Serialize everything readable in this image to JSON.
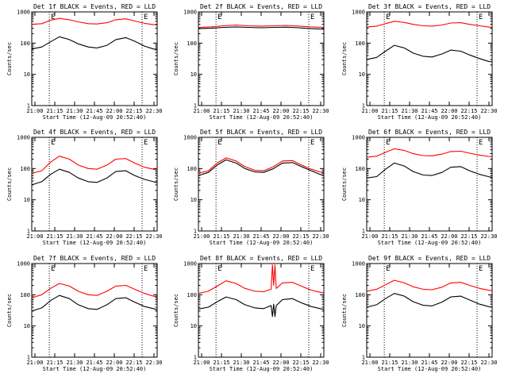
{
  "chart_data": [
    {
      "type": "line",
      "title": "Det 1f BLACK = Events, RED = LLD",
      "xlabel": "Start Time (12-Aug-09 20:52:40)",
      "ylabel": "Counts/sec",
      "yscale": "log",
      "ylim": [
        1,
        1000
      ],
      "xlim": [
        0,
        100
      ],
      "x_ticks": [
        "21:00",
        "21:15",
        "21:30",
        "21:45",
        "22:00",
        "22:15",
        "22:30"
      ],
      "y_ticks": [
        "1",
        "10",
        "100",
        "1000"
      ],
      "event_markers": [
        "E",
        "E"
      ],
      "series": [
        {
          "color": "#000000",
          "x": [
            0,
            8,
            15,
            22,
            30,
            37,
            45,
            52,
            60,
            67,
            75,
            82,
            90,
            97,
            100
          ],
          "values": [
            65,
            75,
            110,
            160,
            130,
            95,
            75,
            70,
            85,
            130,
            150,
            115,
            80,
            65,
            62
          ]
        },
        {
          "color": "#ff0000",
          "x": [
            0,
            8,
            15,
            22,
            30,
            37,
            45,
            52,
            60,
            67,
            75,
            82,
            90,
            97,
            100
          ],
          "values": [
            400,
            420,
            540,
            620,
            560,
            480,
            420,
            410,
            450,
            560,
            600,
            510,
            430,
            390,
            380
          ]
        }
      ]
    },
    {
      "type": "line",
      "title": "Det 2f BLACK = Events, RED = LLD",
      "xlabel": "Start Time (12-Aug-09 20:52:40)",
      "ylabel": "Counts/sec",
      "yscale": "log",
      "ylim": [
        1,
        1000
      ],
      "xlim": [
        0,
        100
      ],
      "x_ticks": [
        "21:00",
        "21:15",
        "21:30",
        "21:45",
        "22:00",
        "22:15",
        "22:30"
      ],
      "y_ticks": [
        "1",
        "10",
        "100",
        "1000"
      ],
      "event_markers": [
        "E",
        "E"
      ],
      "series": [
        {
          "color": "#000000",
          "x": [
            0,
            10,
            20,
            30,
            40,
            50,
            60,
            70,
            80,
            90,
            100
          ],
          "values": [
            290,
            300,
            320,
            330,
            320,
            310,
            320,
            325,
            310,
            290,
            280
          ]
        },
        {
          "color": "#ff0000",
          "x": [
            0,
            10,
            20,
            30,
            40,
            50,
            60,
            70,
            80,
            90,
            100
          ],
          "values": [
            320,
            330,
            360,
            380,
            360,
            350,
            360,
            370,
            350,
            330,
            320
          ]
        }
      ]
    },
    {
      "type": "line",
      "title": "Det 3f BLACK = Events, RED = LLD",
      "xlabel": "Start Time (12-Aug-09 20:52:40)",
      "ylabel": "Counts/sec",
      "yscale": "log",
      "ylim": [
        1,
        1000
      ],
      "xlim": [
        0,
        100
      ],
      "x_ticks": [
        "21:00",
        "21:15",
        "21:30",
        "21:45",
        "22:00",
        "22:15",
        "22:30"
      ],
      "y_ticks": [
        "1",
        "10",
        "100",
        "1000"
      ],
      "event_markers": [
        "E",
        "E"
      ],
      "series": [
        {
          "color": "#000000",
          "x": [
            0,
            8,
            15,
            22,
            30,
            37,
            45,
            52,
            60,
            67,
            75,
            82,
            90,
            97,
            100
          ],
          "values": [
            30,
            35,
            55,
            85,
            70,
            48,
            38,
            36,
            45,
            60,
            55,
            42,
            32,
            26,
            25
          ]
        },
        {
          "color": "#ff0000",
          "x": [
            0,
            8,
            15,
            22,
            30,
            37,
            45,
            52,
            60,
            67,
            75,
            82,
            90,
            97,
            100
          ],
          "values": [
            330,
            350,
            420,
            500,
            460,
            400,
            360,
            350,
            380,
            440,
            450,
            400,
            360,
            330,
            320
          ]
        }
      ]
    },
    {
      "type": "line",
      "title": "Det 4f BLACK = Events, RED = LLD",
      "xlabel": "Start Time (12-Aug-09 20:52:40)",
      "ylabel": "Counts/sec",
      "yscale": "log",
      "ylim": [
        1,
        1000
      ],
      "xlim": [
        0,
        100
      ],
      "x_ticks": [
        "21:00",
        "21:15",
        "21:30",
        "21:45",
        "22:00",
        "22:15",
        "22:30"
      ],
      "y_ticks": [
        "1",
        "10",
        "100",
        "1000"
      ],
      "event_markers": [
        "E",
        "E"
      ],
      "series": [
        {
          "color": "#000000",
          "x": [
            0,
            8,
            15,
            22,
            30,
            37,
            45,
            52,
            60,
            67,
            75,
            82,
            90,
            97,
            100
          ],
          "values": [
            30,
            38,
            65,
            95,
            75,
            50,
            38,
            36,
            50,
            80,
            85,
            60,
            45,
            38,
            35
          ]
        },
        {
          "color": "#ff0000",
          "x": [
            0,
            8,
            15,
            22,
            30,
            37,
            45,
            52,
            60,
            67,
            75,
            82,
            90,
            97,
            100
          ],
          "values": [
            70,
            85,
            160,
            250,
            200,
            130,
            100,
            95,
            130,
            200,
            210,
            150,
            110,
            95,
            90
          ]
        }
      ]
    },
    {
      "type": "line",
      "title": "Det 5f BLACK = Events, RED = LLD",
      "xlabel": "Start Time (12-Aug-09 20:52:40)",
      "ylabel": "Counts/sec",
      "yscale": "log",
      "ylim": [
        1,
        1000
      ],
      "xlim": [
        0,
        100
      ],
      "x_ticks": [
        "21:00",
        "21:15",
        "21:30",
        "21:45",
        "22:00",
        "22:15",
        "22:30"
      ],
      "y_ticks": [
        "1",
        "10",
        "100",
        "1000"
      ],
      "event_markers": [
        "E",
        "E"
      ],
      "series": [
        {
          "color": "#000000",
          "x": [
            0,
            8,
            15,
            22,
            30,
            37,
            45,
            52,
            60,
            67,
            75,
            82,
            90,
            97,
            100
          ],
          "values": [
            60,
            75,
            130,
            190,
            150,
            100,
            78,
            75,
            100,
            150,
            155,
            115,
            85,
            65,
            60
          ]
        },
        {
          "color": "#ff0000",
          "x": [
            0,
            8,
            15,
            22,
            30,
            37,
            45,
            52,
            60,
            67,
            75,
            82,
            90,
            97,
            100
          ],
          "values": [
            70,
            85,
            150,
            220,
            175,
            115,
            88,
            85,
            115,
            175,
            180,
            130,
            95,
            78,
            72
          ]
        }
      ]
    },
    {
      "type": "line",
      "title": "Det 6f BLACK = Events, RED = LLD",
      "xlabel": "Start Time (12-Aug-09 20:52:40)",
      "ylabel": "Counts/sec",
      "yscale": "log",
      "ylim": [
        1,
        1000
      ],
      "xlim": [
        0,
        100
      ],
      "x_ticks": [
        "21:00",
        "21:15",
        "21:30",
        "21:45",
        "22:00",
        "22:15",
        "22:30"
      ],
      "y_ticks": [
        "1",
        "10",
        "100",
        "1000"
      ],
      "event_markers": [
        "E",
        "E"
      ],
      "series": [
        {
          "color": "#000000",
          "x": [
            0,
            8,
            15,
            22,
            30,
            37,
            45,
            52,
            60,
            67,
            75,
            82,
            90,
            97,
            100
          ],
          "values": [
            50,
            55,
            95,
            150,
            120,
            80,
            62,
            60,
            75,
            110,
            115,
            85,
            65,
            55,
            52
          ]
        },
        {
          "color": "#ff0000",
          "x": [
            0,
            8,
            15,
            22,
            30,
            37,
            45,
            52,
            60,
            67,
            75,
            82,
            90,
            97,
            100
          ],
          "values": [
            230,
            250,
            330,
            430,
            380,
            300,
            260,
            255,
            290,
            350,
            360,
            310,
            270,
            245,
            240
          ]
        }
      ]
    },
    {
      "type": "line",
      "title": "Det 7f BLACK = Events, RED = LLD",
      "xlabel": "Start Time (12-Aug-09 20:52:40)",
      "ylabel": "Counts/sec",
      "yscale": "log",
      "ylim": [
        1,
        1000
      ],
      "xlim": [
        0,
        100
      ],
      "x_ticks": [
        "21:00",
        "21:15",
        "21:30",
        "21:45",
        "22:00",
        "22:15",
        "22:30"
      ],
      "y_ticks": [
        "1",
        "10",
        "100",
        "1000"
      ],
      "event_markers": [
        "E",
        "E"
      ],
      "series": [
        {
          "color": "#000000",
          "x": [
            0,
            8,
            15,
            22,
            30,
            37,
            45,
            52,
            60,
            67,
            75,
            82,
            90,
            97,
            100
          ],
          "values": [
            30,
            38,
            65,
            95,
            75,
            48,
            36,
            34,
            48,
            75,
            80,
            58,
            42,
            36,
            33
          ]
        },
        {
          "color": "#ff0000",
          "x": [
            0,
            8,
            15,
            22,
            30,
            37,
            45,
            52,
            60,
            67,
            75,
            82,
            90,
            97,
            100
          ],
          "values": [
            80,
            100,
            160,
            230,
            190,
            130,
            100,
            95,
            130,
            190,
            200,
            150,
            110,
            90,
            85
          ]
        }
      ]
    },
    {
      "type": "line",
      "title": "Det 8f BLACK = Events, RED = LLD",
      "xlabel": "Start Time (12-Aug-09 20:52:40)",
      "ylabel": "Counts/sec",
      "yscale": "log",
      "ylim": [
        1,
        1000
      ],
      "xlim": [
        0,
        100
      ],
      "x_ticks": [
        "21:00",
        "21:15",
        "21:30",
        "21:45",
        "22:00",
        "22:15",
        "22:30"
      ],
      "y_ticks": [
        "1",
        "10",
        "100",
        "1000"
      ],
      "event_markers": [
        "E",
        "E"
      ],
      "series": [
        {
          "color": "#000000",
          "x": [
            0,
            8,
            15,
            22,
            30,
            37,
            45,
            52,
            58,
            59,
            60,
            61,
            62,
            67,
            75,
            82,
            90,
            97,
            100
          ],
          "values": [
            35,
            40,
            60,
            85,
            70,
            48,
            38,
            36,
            45,
            20,
            50,
            20,
            45,
            70,
            75,
            55,
            42,
            36,
            34
          ]
        },
        {
          "color": "#ff0000",
          "x": [
            0,
            8,
            15,
            22,
            30,
            37,
            45,
            52,
            58,
            59,
            60,
            61,
            62,
            67,
            75,
            82,
            90,
            97,
            100
          ],
          "values": [
            110,
            130,
            190,
            280,
            230,
            160,
            130,
            125,
            150,
            900,
            200,
            900,
            160,
            240,
            250,
            190,
            140,
            120,
            115
          ]
        }
      ]
    },
    {
      "type": "line",
      "title": "Det 9f BLACK = Events, RED = LLD",
      "xlabel": "Start Time (12-Aug-09 20:52:40)",
      "ylabel": "Counts/sec",
      "yscale": "log",
      "ylim": [
        1,
        1000
      ],
      "xlim": [
        0,
        100
      ],
      "x_ticks": [
        "21:00",
        "21:15",
        "21:30",
        "21:45",
        "22:00",
        "22:15",
        "22:30"
      ],
      "y_ticks": [
        "1",
        "10",
        "100",
        "1000"
      ],
      "event_markers": [
        "E",
        "E"
      ],
      "series": [
        {
          "color": "#000000",
          "x": [
            0,
            8,
            15,
            22,
            30,
            37,
            45,
            52,
            60,
            67,
            75,
            82,
            90,
            97,
            100
          ],
          "values": [
            40,
            48,
            75,
            110,
            90,
            60,
            46,
            44,
            58,
            85,
            90,
            68,
            50,
            42,
            40
          ]
        },
        {
          "color": "#ff0000",
          "x": [
            0,
            8,
            15,
            22,
            30,
            37,
            45,
            52,
            60,
            67,
            75,
            82,
            90,
            97,
            100
          ],
          "values": [
            130,
            150,
            210,
            290,
            240,
            180,
            150,
            145,
            175,
            240,
            250,
            200,
            160,
            140,
            135
          ]
        }
      ]
    }
  ]
}
